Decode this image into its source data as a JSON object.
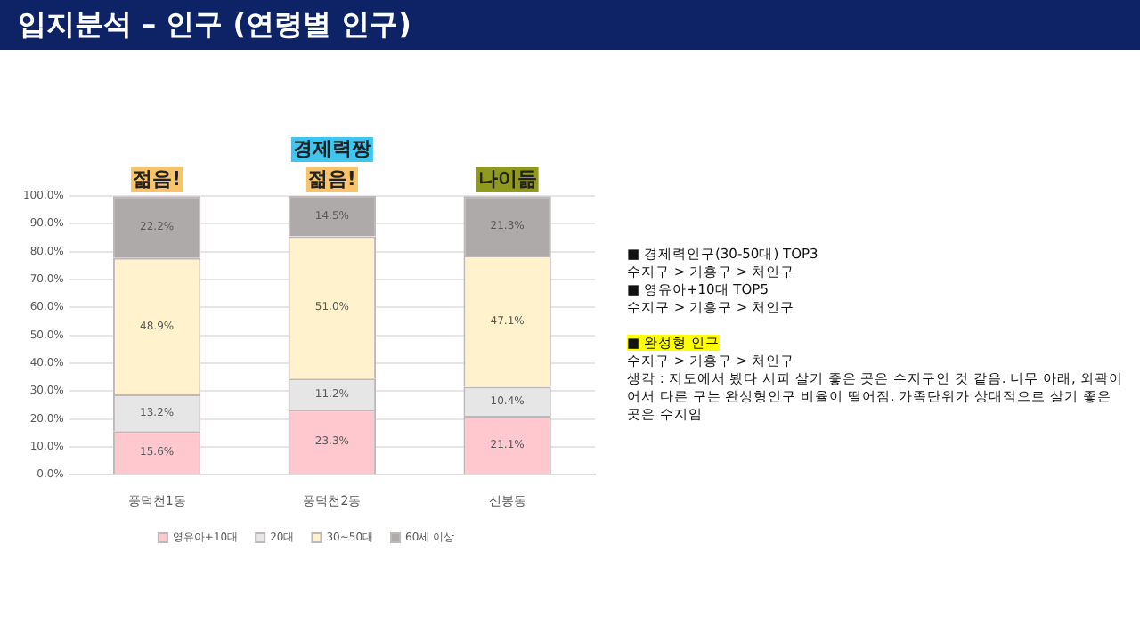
{
  "chart_data": {
    "type": "bar",
    "title": "입지분석 – 인구 (연령별 인구)",
    "stacked": true,
    "categories": [
      "풍덕천1동",
      "풍덕천2동",
      "신봉동"
    ],
    "series": [
      {
        "name": "영유아+10대",
        "color": "#ffc7ce",
        "values": [
          15.6,
          23.3,
          21.1
        ],
        "value_labels": [
          "15.6%",
          "23.3%",
          "21.1%"
        ]
      },
      {
        "name": "20대",
        "color": "#e7e6e6",
        "values": [
          13.2,
          11.2,
          10.4
        ],
        "value_labels": [
          "13.2%",
          "11.2%",
          "10.4%"
        ]
      },
      {
        "name": "30~50대",
        "color": "#fff2cc",
        "values": [
          48.9,
          51.0,
          47.1
        ],
        "value_labels": [
          "48.9%",
          "51.0%",
          "47.1%"
        ]
      },
      {
        "name": "60세 이상",
        "color": "#aeaaaa",
        "values": [
          22.2,
          14.5,
          21.3
        ],
        "value_labels": [
          "22.2%",
          "14.5%",
          "21.3%"
        ]
      }
    ],
    "ylim": [
      0,
      100
    ],
    "yticks": [
      {
        "value": 0,
        "label": "0.0%"
      },
      {
        "value": 10,
        "label": "10.0%"
      },
      {
        "value": 20,
        "label": "20.0%"
      },
      {
        "value": 30,
        "label": "30.0%"
      },
      {
        "value": 40,
        "label": "40.0%"
      },
      {
        "value": 50,
        "label": "50.0%"
      },
      {
        "value": 60,
        "label": "60.0%"
      },
      {
        "value": 70,
        "label": "70.0%"
      },
      {
        "value": 80,
        "label": "80.0%"
      },
      {
        "value": 90,
        "label": "90.0%"
      },
      {
        "value": 100,
        "label": "100.0%"
      }
    ],
    "grid": "y",
    "legend": "bottom",
    "annotations": [
      {
        "text": "젊음!",
        "x": "풍덕천1동",
        "y": 100
      },
      {
        "text": "경제력짱",
        "x": "풍덕천2동",
        "y": 100
      },
      {
        "text": "젊음!",
        "x": "풍덕천2동",
        "y": 100
      },
      {
        "text": "나이듦",
        "x": "신봉동",
        "y": 100
      },
      "■ 경제력인구(30-50대) TOP3",
      "수지구 > 기흥구 > 처인구",
      "■ 영유아+10대 TOP5",
      "수지구 > 기흥구 > 처인구",
      "■ 완성형 인구",
      "수지구 > 기흥구 > 처인구",
      "생각 : 지도에서 봤다 시피 살기 좋은 곳은 수지구인 것 같음. 너무 아래, 외곽이어서 다른 구는 완성형인구 비율이 떨어짐. 가족단위가 상대적으로 살기 좋은 곳은 수지임"
    ]
  }
}
